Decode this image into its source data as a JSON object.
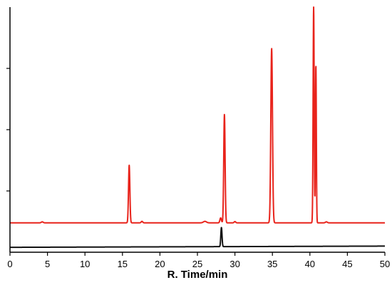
{
  "chart_data": {
    "type": "line",
    "xlabel": "R. Time/min",
    "ylabel": "",
    "xlim": [
      0,
      50
    ],
    "ylim": [
      0,
      1
    ],
    "x_ticks": [
      0,
      5,
      10,
      15,
      20,
      25,
      30,
      35,
      40,
      45,
      50
    ],
    "x_tick_labels": [
      "0",
      "5",
      "10",
      "15",
      "20",
      "25",
      "30",
      "35",
      "40",
      "45",
      "50"
    ],
    "y_ticks": [
      0.25,
      0.5,
      0.75
    ],
    "grid": false,
    "legend": "none",
    "series": [
      {
        "color": "#e8231b",
        "baseline": 0.12,
        "peaks": [
          {
            "x": 4.3,
            "height": 0.004,
            "width": 0.12
          },
          {
            "x": 15.9,
            "height": 0.235,
            "width": 0.09
          },
          {
            "x": 17.6,
            "height": 0.006,
            "width": 0.1
          },
          {
            "x": 26.0,
            "height": 0.006,
            "width": 0.2
          },
          {
            "x": 28.1,
            "height": 0.02,
            "width": 0.1
          },
          {
            "x": 28.6,
            "height": 0.442,
            "width": 0.09
          },
          {
            "x": 30.0,
            "height": 0.005,
            "width": 0.1
          },
          {
            "x": 34.9,
            "height": 0.711,
            "width": 0.11
          },
          {
            "x": 40.5,
            "height": 0.88,
            "width": 0.07
          },
          {
            "x": 40.8,
            "height": 0.643,
            "width": 0.06
          },
          {
            "x": 42.2,
            "height": 0.004,
            "width": 0.12
          }
        ]
      },
      {
        "color": "#111111",
        "baseline": 0.02,
        "drift": 0.005,
        "peaks": [
          {
            "x": 28.2,
            "height": 0.078,
            "width": 0.08
          }
        ]
      }
    ]
  }
}
